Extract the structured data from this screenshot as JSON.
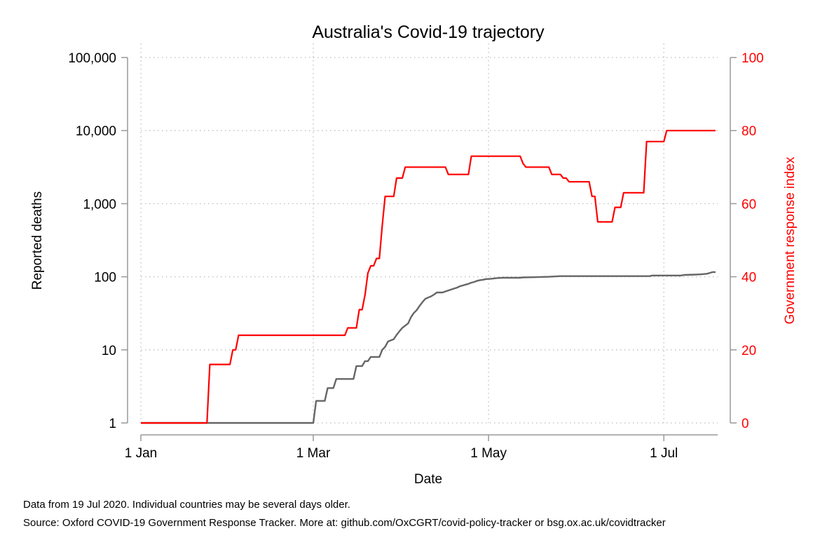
{
  "chart_data": {
    "type": "line",
    "title": "Australia's Covid-19 trajectory",
    "xlabel": "Date",
    "ylabel_left": "Reported deaths",
    "ylabel_right": "Government response index",
    "x_ticks": [
      {
        "label": "1 Jan",
        "date": "2020-01-01"
      },
      {
        "label": "1 Mar",
        "date": "2020-03-01"
      },
      {
        "label": "1 May",
        "date": "2020-05-01"
      },
      {
        "label": "1 Jul",
        "date": "2020-07-01"
      }
    ],
    "xlim": [
      "2020-01-01",
      "2020-07-19"
    ],
    "y_left": {
      "scale": "log",
      "range": [
        1,
        100000
      ],
      "ticks": [
        1,
        10,
        100,
        1000,
        10000,
        100000
      ],
      "tick_labels": [
        "1",
        "10",
        "100",
        "1,000",
        "10,000",
        "100,000"
      ]
    },
    "y_right": {
      "scale": "linear",
      "range": [
        0,
        100
      ],
      "ticks": [
        0,
        20,
        40,
        60,
        80,
        100
      ],
      "tick_labels": [
        "0",
        "20",
        "40",
        "60",
        "80",
        "100"
      ]
    },
    "grid": true,
    "series": [
      {
        "name": "",
        "axis": "left",
        "color": "#666666",
        "points": [
          [
            "2020-01-01",
            1
          ],
          [
            "2020-03-01",
            1
          ],
          [
            "2020-03-02",
            2
          ],
          [
            "2020-03-05",
            2
          ],
          [
            "2020-03-06",
            3
          ],
          [
            "2020-03-08",
            3
          ],
          [
            "2020-03-09",
            4
          ],
          [
            "2020-03-15",
            4
          ],
          [
            "2020-03-16",
            6
          ],
          [
            "2020-03-18",
            6
          ],
          [
            "2020-03-19",
            7
          ],
          [
            "2020-03-20",
            7
          ],
          [
            "2020-03-21",
            8
          ],
          [
            "2020-03-24",
            8
          ],
          [
            "2020-03-25",
            10
          ],
          [
            "2020-03-26",
            11
          ],
          [
            "2020-03-27",
            13
          ],
          [
            "2020-03-29",
            14
          ],
          [
            "2020-03-30",
            16
          ],
          [
            "2020-03-31",
            18
          ],
          [
            "2020-04-01",
            20
          ],
          [
            "2020-04-03",
            23
          ],
          [
            "2020-04-04",
            28
          ],
          [
            "2020-04-05",
            32
          ],
          [
            "2020-04-06",
            35
          ],
          [
            "2020-04-07",
            40
          ],
          [
            "2020-04-08",
            45
          ],
          [
            "2020-04-09",
            50
          ],
          [
            "2020-04-10",
            52
          ],
          [
            "2020-04-11",
            54
          ],
          [
            "2020-04-12",
            57
          ],
          [
            "2020-04-13",
            61
          ],
          [
            "2020-04-15",
            61
          ],
          [
            "2020-04-16",
            63
          ],
          [
            "2020-04-17",
            65
          ],
          [
            "2020-04-18",
            67
          ],
          [
            "2020-04-19",
            69
          ],
          [
            "2020-04-20",
            71
          ],
          [
            "2020-04-21",
            74
          ],
          [
            "2020-04-22",
            76
          ],
          [
            "2020-04-23",
            78
          ],
          [
            "2020-04-24",
            80
          ],
          [
            "2020-04-25",
            83
          ],
          [
            "2020-04-26",
            85
          ],
          [
            "2020-04-27",
            88
          ],
          [
            "2020-04-28",
            90
          ],
          [
            "2020-04-29",
            91
          ],
          [
            "2020-04-30",
            93
          ],
          [
            "2020-05-02",
            94
          ],
          [
            "2020-05-04",
            96
          ],
          [
            "2020-05-06",
            97
          ],
          [
            "2020-05-12",
            97
          ],
          [
            "2020-05-13",
            98
          ],
          [
            "2020-05-18",
            99
          ],
          [
            "2020-05-22",
            100
          ],
          [
            "2020-05-26",
            102
          ],
          [
            "2020-06-26",
            102
          ],
          [
            "2020-06-27",
            104
          ],
          [
            "2020-07-07",
            104
          ],
          [
            "2020-07-08",
            106
          ],
          [
            "2020-07-12",
            107
          ],
          [
            "2020-07-14",
            108
          ],
          [
            "2020-07-16",
            110
          ],
          [
            "2020-07-17",
            113
          ],
          [
            "2020-07-18",
            116
          ],
          [
            "2020-07-19",
            116
          ]
        ]
      },
      {
        "name": "",
        "axis": "right",
        "color": "#ff0000",
        "points": [
          [
            "2020-01-01",
            0
          ],
          [
            "2020-01-24",
            0
          ],
          [
            "2020-01-25",
            16
          ],
          [
            "2020-02-01",
            16
          ],
          [
            "2020-02-02",
            20
          ],
          [
            "2020-02-03",
            20
          ],
          [
            "2020-02-04",
            24
          ],
          [
            "2020-03-12",
            24
          ],
          [
            "2020-03-13",
            26
          ],
          [
            "2020-03-16",
            26
          ],
          [
            "2020-03-17",
            31
          ],
          [
            "2020-03-18",
            31
          ],
          [
            "2020-03-19",
            35
          ],
          [
            "2020-03-20",
            41
          ],
          [
            "2020-03-21",
            43
          ],
          [
            "2020-03-22",
            43
          ],
          [
            "2020-03-23",
            45
          ],
          [
            "2020-03-24",
            45
          ],
          [
            "2020-03-25",
            54
          ],
          [
            "2020-03-26",
            62
          ],
          [
            "2020-03-29",
            62
          ],
          [
            "2020-03-30",
            67
          ],
          [
            "2020-04-01",
            67
          ],
          [
            "2020-04-02",
            70
          ],
          [
            "2020-04-16",
            70
          ],
          [
            "2020-04-17",
            68
          ],
          [
            "2020-04-24",
            68
          ],
          [
            "2020-04-25",
            73
          ],
          [
            "2020-05-12",
            73
          ],
          [
            "2020-05-13",
            71
          ],
          [
            "2020-05-14",
            70
          ],
          [
            "2020-05-22",
            70
          ],
          [
            "2020-05-23",
            68
          ],
          [
            "2020-05-26",
            68
          ],
          [
            "2020-05-27",
            67
          ],
          [
            "2020-05-28",
            67
          ],
          [
            "2020-05-29",
            66
          ],
          [
            "2020-06-05",
            66
          ],
          [
            "2020-06-06",
            62
          ],
          [
            "2020-06-07",
            62
          ],
          [
            "2020-06-08",
            55
          ],
          [
            "2020-06-13",
            55
          ],
          [
            "2020-06-14",
            59
          ],
          [
            "2020-06-16",
            59
          ],
          [
            "2020-06-17",
            63
          ],
          [
            "2020-06-24",
            63
          ],
          [
            "2020-06-25",
            77
          ],
          [
            "2020-07-01",
            77
          ],
          [
            "2020-07-02",
            80
          ],
          [
            "2020-07-19",
            80
          ]
        ]
      }
    ]
  },
  "notes": {
    "line1": "Data from 19 Jul 2020. Individual countries may be several days older.",
    "line2": "Source: Oxford COVID-19 Government Response Tracker. More at: github.com/OxCGRT/covid-policy-tracker or bsg.ox.ac.uk/covidtracker"
  }
}
